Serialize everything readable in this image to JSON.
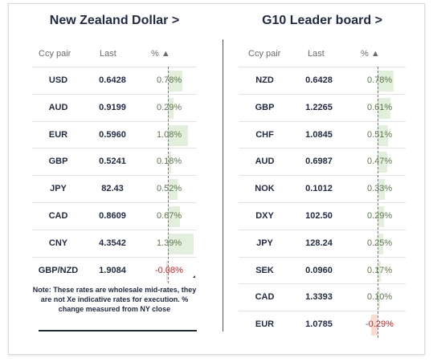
{
  "left_panel": {
    "title": "New Zealand Dollar >",
    "headers": {
      "pair": "Ccy pair",
      "last": "Last",
      "pct": "% ▲"
    },
    "rows": [
      {
        "pair": "USD",
        "last": "0.6428",
        "pct": "0.78%",
        "value": 0.78
      },
      {
        "pair": "AUD",
        "last": "0.9199",
        "pct": "0.29%",
        "value": 0.29
      },
      {
        "pair": "EUR",
        "last": "0.5960",
        "pct": "1.08%",
        "value": 1.08
      },
      {
        "pair": "GBP",
        "last": "0.5241",
        "pct": "0.18%",
        "value": 0.18
      },
      {
        "pair": "JPY",
        "last": "82.43",
        "pct": "0.52%",
        "value": 0.52
      },
      {
        "pair": "CAD",
        "last": "0.8609",
        "pct": "0.67%",
        "value": 0.67
      },
      {
        "pair": "CNY",
        "last": "4.3542",
        "pct": "1.39%",
        "value": 1.39
      },
      {
        "pair": "GBP/NZD",
        "last": "1.9084",
        "pct": "-0.08%",
        "value": -0.08
      }
    ],
    "note": "Note: These rates are wholesale mid-rates, they are not Xe indicative rates for execution. % change measured from NY close"
  },
  "right_panel": {
    "title": "G10 Leader board >",
    "headers": {
      "pair": "Ccy pair",
      "last": "Last",
      "pct": "% ▲"
    },
    "rows": [
      {
        "pair": "NZD",
        "last": "0.6428",
        "pct": "0.78%",
        "value": 0.78
      },
      {
        "pair": "GBP",
        "last": "1.2265",
        "pct": "0.61%",
        "value": 0.61
      },
      {
        "pair": "CHF",
        "last": "1.0845",
        "pct": "0.51%",
        "value": 0.51
      },
      {
        "pair": "AUD",
        "last": "0.6987",
        "pct": "0.47%",
        "value": 0.47
      },
      {
        "pair": "NOK",
        "last": "0.1012",
        "pct": "0.33%",
        "value": 0.33
      },
      {
        "pair": "DXY",
        "last": "102.50",
        "pct": "0.29%",
        "value": 0.29
      },
      {
        "pair": "JPY",
        "last": "128.24",
        "pct": "0.25%",
        "value": 0.25
      },
      {
        "pair": "SEK",
        "last": "0.0960",
        "pct": "0.17%",
        "value": 0.17
      },
      {
        "pair": "CAD",
        "last": "1.3393",
        "pct": "0.10%",
        "value": 0.1
      },
      {
        "pair": "EUR",
        "last": "1.0785",
        "pct": "-0.29%",
        "value": -0.29
      }
    ]
  },
  "colors": {
    "positive_bar": "#e3efdd",
    "negative_bar": "#f8dcd2",
    "negative_text": "#cc2222",
    "title": "#1f2a44"
  }
}
